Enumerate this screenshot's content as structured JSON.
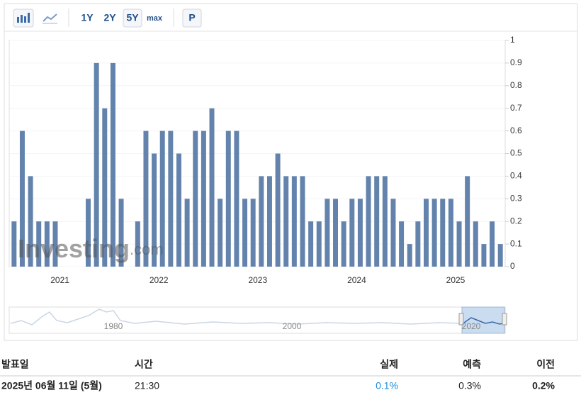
{
  "toolbar": {
    "buttons": [
      "1Y",
      "2Y",
      "5Y",
      "max",
      "P"
    ]
  },
  "chart_data": {
    "type": "bar",
    "color": "#6383ad",
    "categories": [
      null,
      null,
      null,
      null,
      null,
      null,
      "2021",
      null,
      null,
      null,
      null,
      null,
      null,
      null,
      null,
      null,
      null,
      null,
      "2022",
      null,
      null,
      null,
      null,
      null,
      null,
      null,
      null,
      null,
      null,
      null,
      "2023",
      null,
      null,
      null,
      null,
      null,
      null,
      null,
      null,
      null,
      null,
      null,
      "2024",
      null,
      null,
      null,
      null,
      null,
      null,
      null,
      null,
      null,
      null,
      null,
      "2025",
      null,
      null,
      null,
      null,
      null
    ],
    "values": [
      0.2,
      0.6,
      0.4,
      0.2,
      0.2,
      0.2,
      0,
      0,
      0,
      0.3,
      0.9,
      0.7,
      0.9,
      0.3,
      0,
      0.2,
      0.6,
      0.5,
      0.6,
      0.6,
      0.5,
      0.3,
      0.6,
      0.6,
      0.7,
      0.3,
      0.6,
      0.6,
      0.3,
      0.3,
      0.4,
      0.4,
      0.5,
      0.4,
      0.4,
      0.4,
      0.2,
      0.2,
      0.3,
      0.3,
      0.2,
      0.3,
      0.3,
      0.4,
      0.4,
      0.4,
      0.3,
      0.2,
      0.1,
      0.2,
      0.3,
      0.3,
      0.3,
      0.3,
      0.2,
      0.4,
      0.2,
      0.1,
      0.2,
      0.1
    ],
    "ylim": [
      0,
      1
    ],
    "yticks": [
      0,
      0.1,
      0.2,
      0.3,
      0.4,
      0.5,
      0.6,
      0.7,
      0.8,
      0.9,
      1
    ],
    "grid": true
  },
  "watermark": [
    "Investing",
    ".com"
  ],
  "navigator": {
    "labels": [
      "1980",
      "2000",
      "2020"
    ]
  },
  "table": {
    "header": [
      "발표일",
      "시간",
      "실제",
      "예측",
      "이전"
    ],
    "rows": [
      [
        "2025년 06월 11일 (5월)",
        "21:30",
        "0.1%",
        "0.3%",
        "0.2%"
      ]
    ]
  }
}
